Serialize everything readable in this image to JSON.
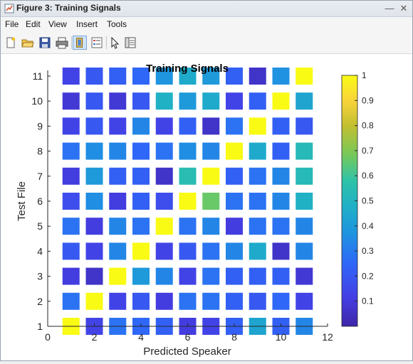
{
  "window": {
    "title": "Figure 3: Training Signals",
    "minimize_glyph": "—",
    "close_glyph": "✕"
  },
  "menu": {
    "items": [
      "File",
      "Edit",
      "View",
      "Insert",
      "Tools"
    ]
  },
  "toolbar": {
    "icons": [
      "new-figure-icon",
      "open-file-icon",
      "save-icon",
      "print-icon",
      "link-plot-icon",
      "insert-legend-icon",
      "pointer-icon",
      "property-editor-icon"
    ]
  },
  "colors": {
    "colormap": [
      "#3e26a8",
      "#4440e6",
      "#2f68f8",
      "#1e93e0",
      "#1fb0c6",
      "#2fc2a8",
      "#73c95c",
      "#c3bf30",
      "#f9d43a",
      "#f9fb14"
    ]
  },
  "chart_data": {
    "type": "heatmap",
    "title": "Training Signals",
    "xlabel": "Predicted Speaker",
    "ylabel": "Test File",
    "xlim": [
      0,
      12
    ],
    "ylim": [
      1,
      11
    ],
    "xticks": [
      0,
      2,
      4,
      6,
      8,
      10,
      12
    ],
    "yticks": [
      1,
      2,
      3,
      4,
      5,
      6,
      7,
      8,
      9,
      10,
      11
    ],
    "colorbar": {
      "min": 0,
      "max": 1,
      "ticks": [
        0.1,
        0.2,
        0.3,
        0.4,
        0.5,
        0.6,
        0.7,
        0.8,
        0.9,
        1
      ]
    },
    "rows": [
      {
        "test_file": 11,
        "values": [
          0.12,
          0.18,
          0.2,
          0.22,
          0.34,
          0.42,
          0.36,
          0.2,
          0.06,
          0.33,
          1.0
        ]
      },
      {
        "test_file": 10,
        "values": [
          0.08,
          0.18,
          0.08,
          0.18,
          0.45,
          0.36,
          0.42,
          0.12,
          0.2,
          1.0,
          0.4
        ]
      },
      {
        "test_file": 9,
        "values": [
          0.12,
          0.18,
          0.12,
          0.3,
          0.12,
          0.2,
          0.06,
          0.25,
          1.0,
          0.2,
          0.18
        ]
      },
      {
        "test_file": 8,
        "values": [
          0.25,
          0.32,
          0.3,
          0.22,
          0.25,
          0.32,
          0.3,
          1.0,
          0.42,
          0.2,
          0.5
        ]
      },
      {
        "test_file": 7,
        "values": [
          0.1,
          0.36,
          0.2,
          0.2,
          0.06,
          0.52,
          1.0,
          0.2,
          0.25,
          0.3,
          0.5
        ]
      },
      {
        "test_file": 6,
        "values": [
          0.15,
          0.32,
          0.1,
          0.2,
          0.15,
          1.0,
          0.65,
          0.25,
          0.25,
          0.3,
          0.45
        ]
      },
      {
        "test_file": 5,
        "values": [
          0.25,
          0.1,
          0.3,
          0.25,
          1.0,
          0.25,
          0.3,
          0.1,
          0.25,
          0.25,
          0.3
        ]
      },
      {
        "test_file": 4,
        "values": [
          0.18,
          0.12,
          0.3,
          1.0,
          0.12,
          0.18,
          0.25,
          0.3,
          0.42,
          0.06,
          0.3
        ]
      },
      {
        "test_file": 3,
        "values": [
          0.1,
          0.06,
          1.0,
          0.36,
          0.3,
          0.12,
          0.25,
          0.2,
          0.2,
          0.2,
          0.08
        ]
      },
      {
        "test_file": 2,
        "values": [
          0.25,
          1.0,
          0.12,
          0.18,
          0.1,
          0.25,
          0.25,
          0.2,
          0.18,
          0.22,
          0.12
        ]
      },
      {
        "test_file": 1,
        "values": [
          1.0,
          0.12,
          0.25,
          0.22,
          0.2,
          0.1,
          0.12,
          0.2,
          0.4,
          0.2,
          0.3
        ]
      }
    ]
  }
}
